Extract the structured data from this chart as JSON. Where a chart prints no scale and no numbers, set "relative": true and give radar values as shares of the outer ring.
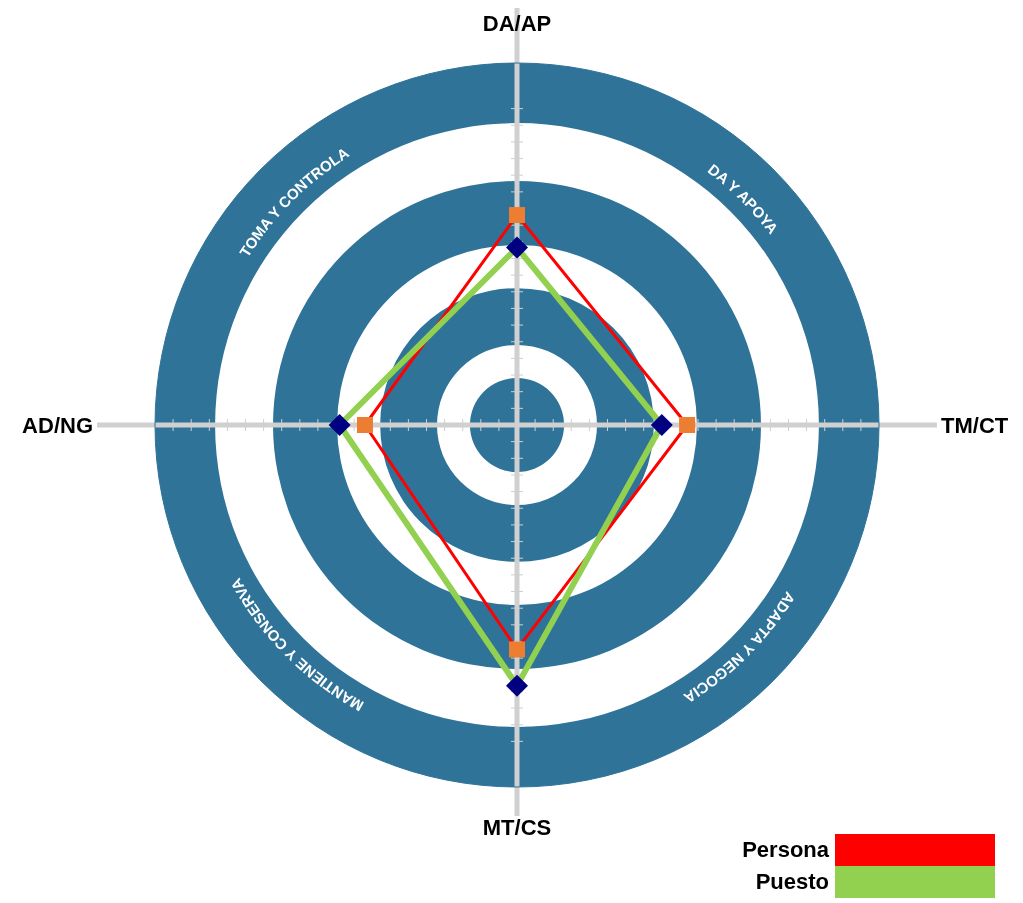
{
  "chart_data": {
    "type": "radar",
    "relative": true,
    "categories": [
      "DA/AP",
      "TM/CT",
      "MT/CS",
      "AD/NG"
    ],
    "series": [
      {
        "name": "Persona",
        "color": "#ff0000",
        "marker": "square",
        "values": [
          0.58,
          0.47,
          0.62,
          0.42
        ]
      },
      {
        "name": "Puesto",
        "color": "#92d050",
        "marker": "diamond",
        "values": [
          0.49,
          0.4,
          0.72,
          0.49
        ]
      }
    ],
    "annotations": [
      "DA Y APOYA",
      "ADAPTA Y NEGOCIA",
      "MANTIENE Y CONSERVA",
      "TOMA Y CONTROLA"
    ],
    "legend": "bottom right",
    "grid": true
  }
}
